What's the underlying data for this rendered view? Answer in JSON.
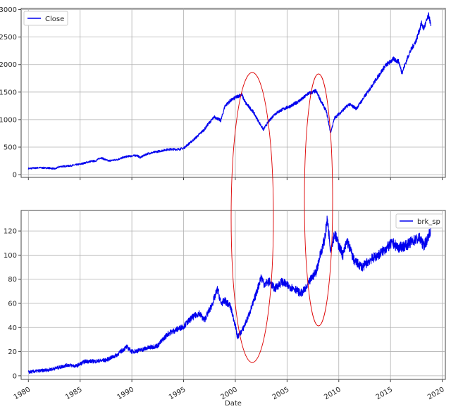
{
  "chart_data": [
    {
      "type": "line",
      "title": "",
      "xlabel": "",
      "ylabel": "",
      "xlim": [
        1979.3,
        2020.3
      ],
      "ylim": [
        -50,
        3020
      ],
      "grid": true,
      "legend_position": "top-left",
      "y_ticks": [
        0,
        500,
        1000,
        1500,
        2000,
        2500,
        3000
      ],
      "y_tick_labels": [
        "0",
        "500",
        "1000",
        "1500",
        "2000",
        "2500",
        "3000"
      ],
      "series": [
        {
          "name": "Close",
          "color": "#0000ee",
          "x": [
            1980.0,
            1981.0,
            1982.0,
            1982.6,
            1983.0,
            1984.0,
            1985.0,
            1986.0,
            1986.5,
            1987.0,
            1987.7,
            1988.5,
            1989.5,
            1990.5,
            1990.8,
            1991.5,
            1992.5,
            1993.5,
            1994.5,
            1995.0,
            1996.0,
            1997.0,
            1997.5,
            1998.0,
            1998.6,
            1999.0,
            1999.5,
            2000.0,
            2000.6,
            2001.0,
            2001.7,
            2002.3,
            2002.7,
            2003.2,
            2003.8,
            2004.5,
            2005.5,
            2006.5,
            2007.0,
            2007.8,
            2008.3,
            2008.8,
            2009.2,
            2009.6,
            2010.0,
            2011.0,
            2011.7,
            2012.5,
            2013.5,
            2014.5,
            2015.3,
            2015.8,
            2016.1,
            2016.8,
            2017.5,
            2018.0,
            2018.2,
            2018.7,
            2018.9
          ],
          "values": [
            110,
            125,
            120,
            105,
            145,
            160,
            190,
            240,
            250,
            310,
            250,
            270,
            330,
            350,
            310,
            380,
            420,
            460,
            460,
            480,
            640,
            820,
            950,
            1050,
            980,
            1250,
            1340,
            1400,
            1460,
            1300,
            1150,
            950,
            820,
            960,
            1100,
            1180,
            1260,
            1380,
            1470,
            1520,
            1330,
            1150,
            760,
            1030,
            1100,
            1280,
            1200,
            1420,
            1700,
            1980,
            2100,
            2050,
            1850,
            2200,
            2450,
            2750,
            2650,
            2900,
            2700
          ]
        }
      ]
    },
    {
      "type": "line",
      "title": "",
      "xlabel": "Date",
      "ylabel": "",
      "xlim": [
        1979.3,
        2020.3
      ],
      "ylim": [
        -3,
        137
      ],
      "grid": true,
      "legend_position": "top-right",
      "y_ticks": [
        0,
        20,
        40,
        60,
        80,
        100,
        120
      ],
      "y_tick_labels": [
        "0",
        "20",
        "40",
        "60",
        "80",
        "100",
        "120"
      ],
      "x_ticks": [
        1980,
        1985,
        1990,
        1995,
        2000,
        2005,
        2010,
        2015,
        2020
      ],
      "x_tick_labels": [
        "1980",
        "1985",
        "1990",
        "1995",
        "2000",
        "2005",
        "2010",
        "2015",
        "2020"
      ],
      "series": [
        {
          "name": "brk_sp",
          "color": "#0000ee",
          "x": [
            1980.0,
            1981.0,
            1982.0,
            1983.0,
            1983.8,
            1984.6,
            1985.5,
            1986.5,
            1987.5,
            1988.5,
            1989.5,
            1990.0,
            1990.7,
            1991.5,
            1992.5,
            1993.5,
            1994.0,
            1995.0,
            1995.8,
            1996.5,
            1997.0,
            1997.7,
            1998.3,
            1998.6,
            1999.0,
            1999.5,
            2000.0,
            2000.2,
            2000.7,
            2001.2,
            2001.8,
            2002.5,
            2002.8,
            2003.3,
            2003.8,
            2004.5,
            2005.2,
            2005.8,
            2006.3,
            2006.8,
            2007.3,
            2007.8,
            2008.2,
            2008.6,
            2008.9,
            2009.2,
            2009.6,
            2010.0,
            2010.4,
            2010.8,
            2011.5,
            2012.3,
            2013.0,
            2013.8,
            2014.5,
            2015.2,
            2015.8,
            2016.5,
            2017.2,
            2017.8,
            2018.2,
            2018.5,
            2018.9
          ],
          "values": [
            3,
            4,
            5,
            7,
            9,
            8,
            12,
            12,
            13,
            17,
            24,
            20,
            21,
            23,
            25,
            35,
            37,
            41,
            48,
            52,
            46,
            58,
            72,
            60,
            62,
            58,
            42,
            32,
            38,
            48,
            62,
            82,
            76,
            78,
            72,
            78,
            74,
            72,
            68,
            72,
            80,
            86,
            100,
            112,
            130,
            105,
            118,
            108,
            100,
            112,
            95,
            90,
            96,
            100,
            105,
            110,
            106,
            108,
            112,
            114,
            108,
            112,
            122
          ]
        }
      ]
    }
  ]
}
